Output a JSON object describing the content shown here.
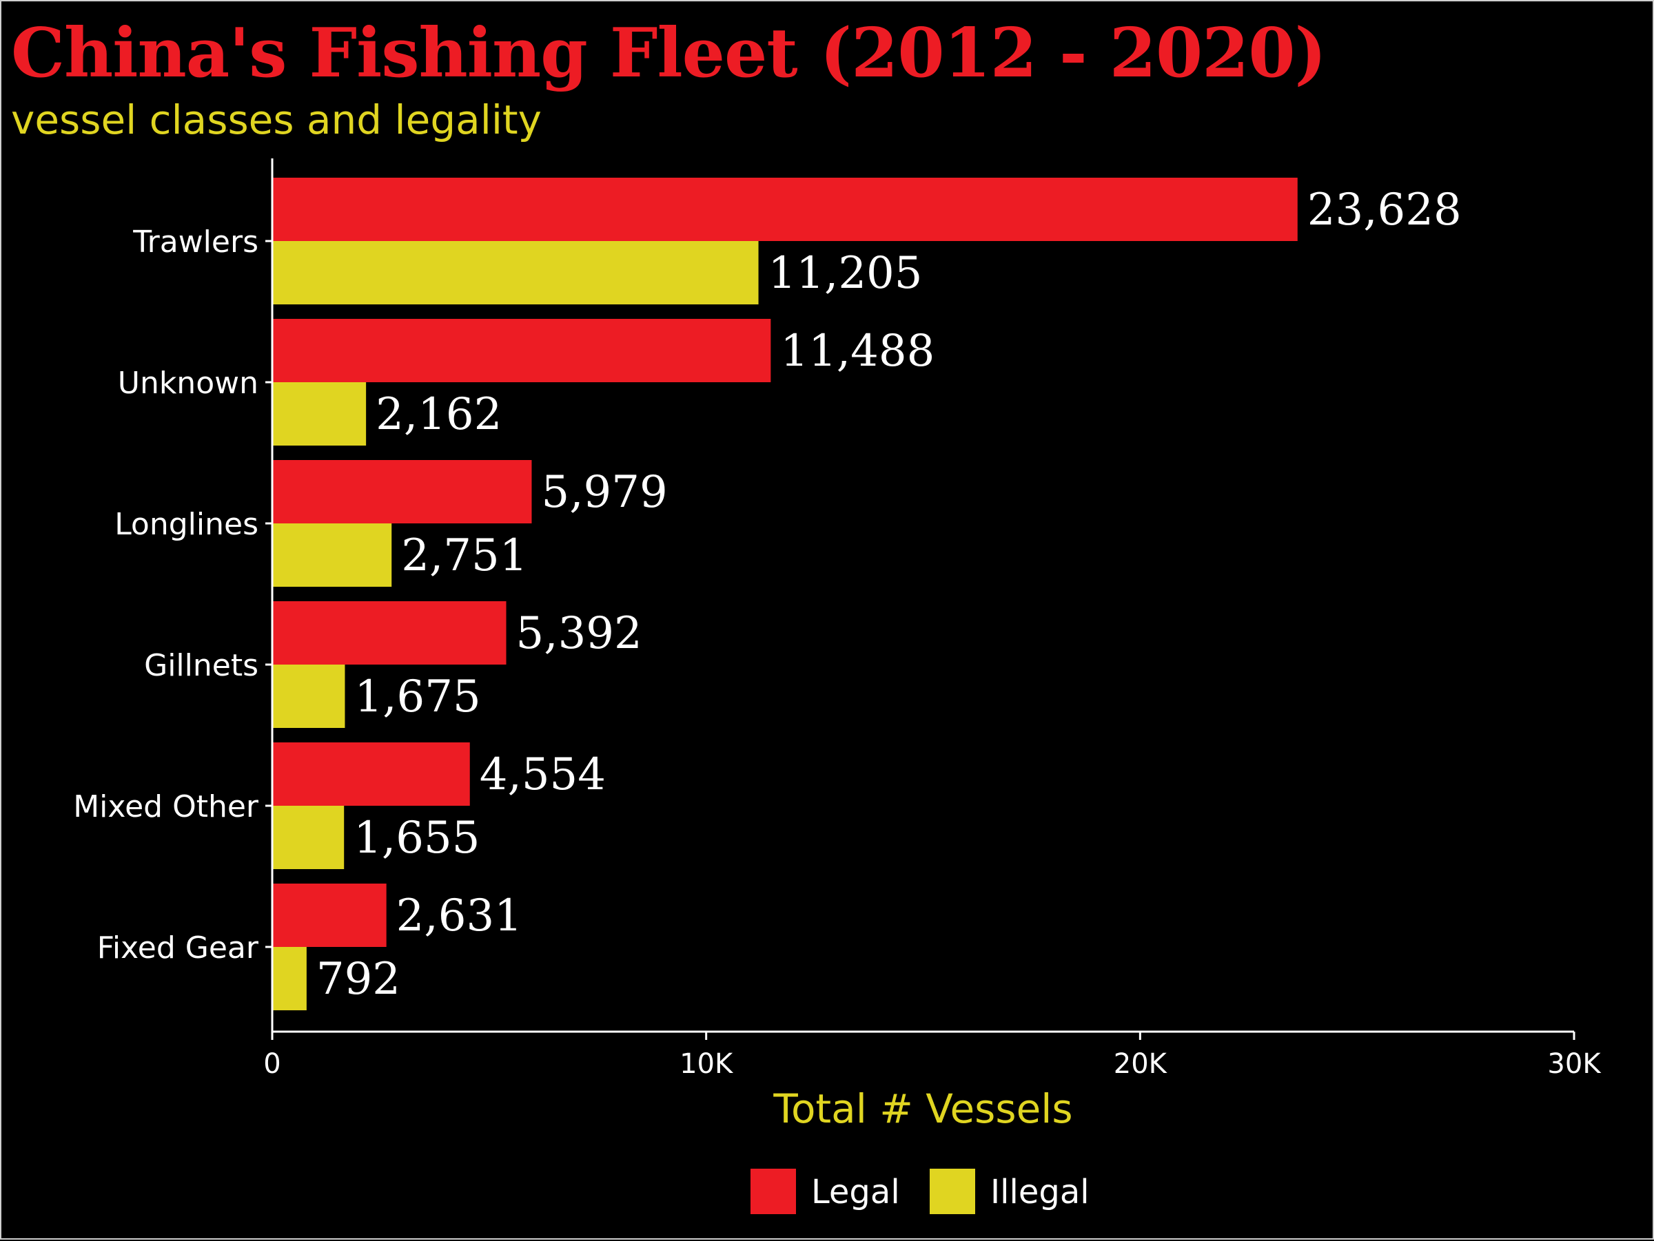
{
  "title": "China's Fishing Fleet (2012 - 2020)",
  "subtitle": "vessel classes and legality",
  "chart_data": {
    "type": "bar",
    "orientation": "horizontal",
    "categories": [
      "Trawlers",
      "Unknown",
      "Longlines",
      "Gillnets",
      "Mixed Other",
      "Fixed Gear"
    ],
    "series": [
      {
        "name": "Legal",
        "color": "#ed1c24",
        "values": [
          23628,
          11488,
          5979,
          5392,
          4554,
          2631
        ]
      },
      {
        "name": "Illegal",
        "color": "#e0d521",
        "values": [
          11205,
          2162,
          2751,
          1675,
          1655,
          792
        ]
      }
    ],
    "data_labels": [
      [
        "23,628",
        "11,488",
        "5,979",
        "5,392",
        "4,554",
        "2,631"
      ],
      [
        "11,205",
        "2,162",
        "2,751",
        "1,675",
        "1,655",
        "792"
      ]
    ],
    "xlabel": "Total # Vessels",
    "ylabel": "",
    "xlim": [
      0,
      30000
    ],
    "x_ticks": [
      0,
      10000,
      20000,
      30000
    ],
    "x_tick_labels": [
      "0",
      "10K",
      "20K",
      "30K"
    ],
    "grid": false,
    "legend_position": "bottom"
  }
}
